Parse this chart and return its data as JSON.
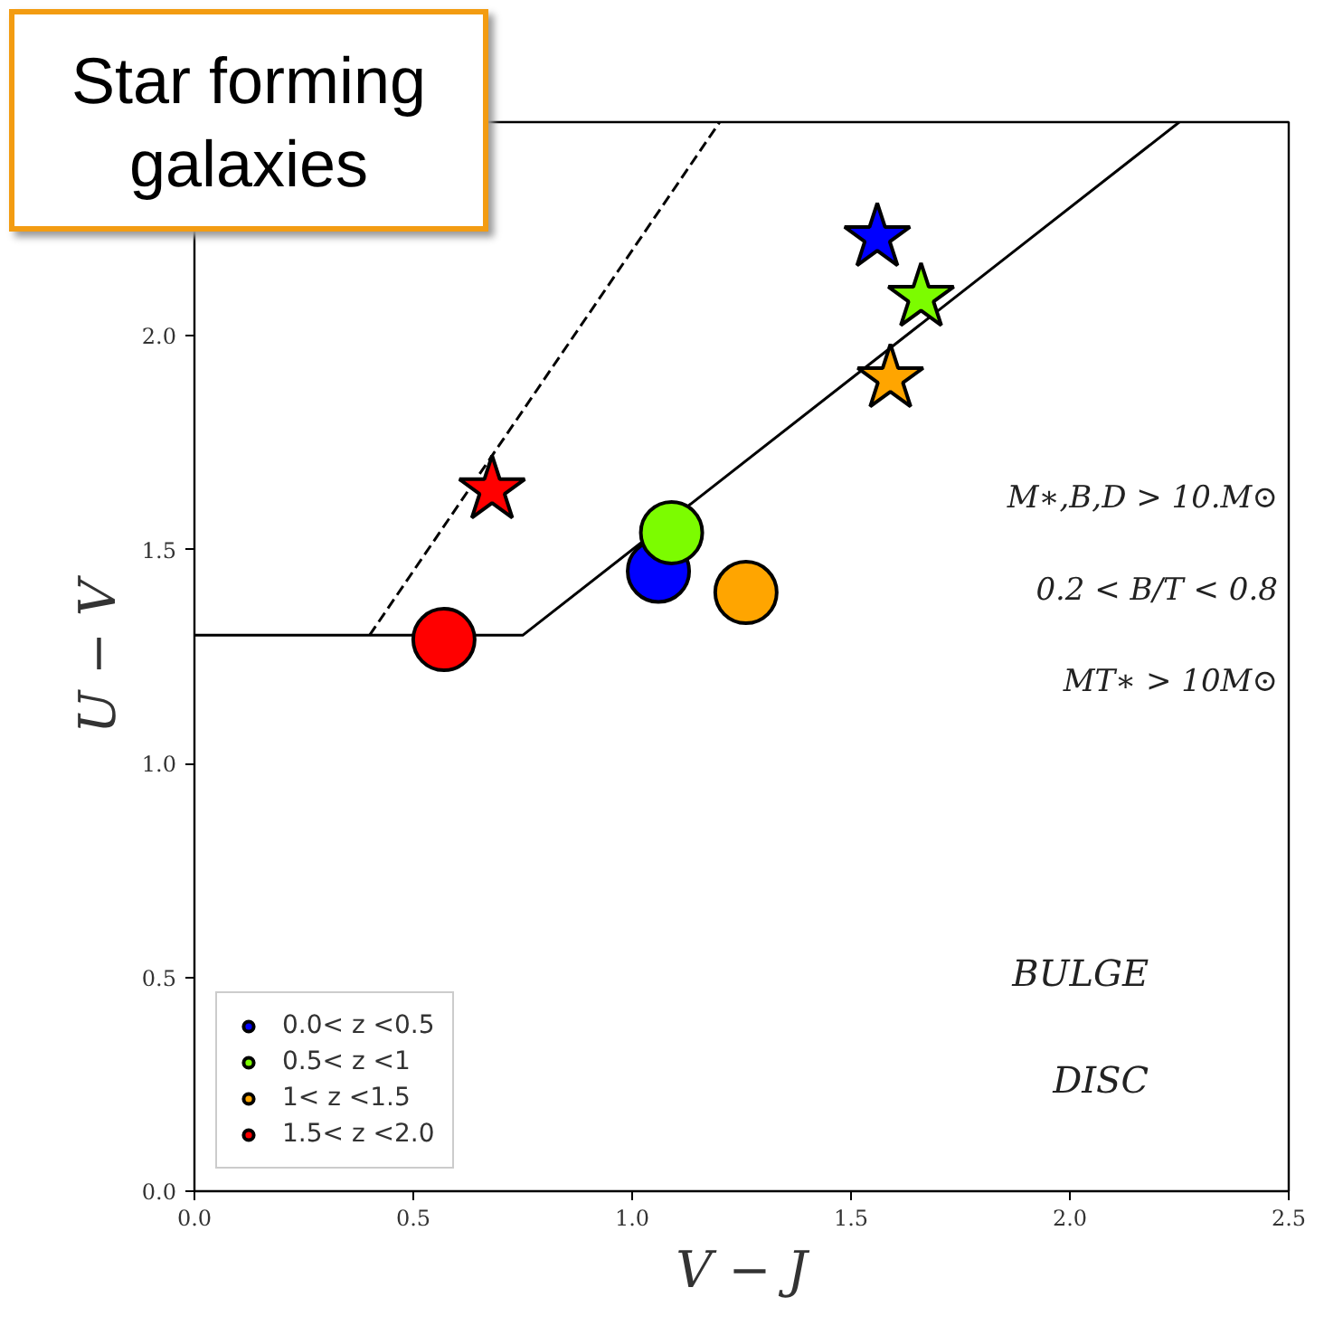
{
  "chart_data": {
    "type": "scatter",
    "title": "Star forming\ngalaxies",
    "xlabel": "V − J",
    "ylabel": "U − V",
    "xlim": [
      0,
      2.5
    ],
    "ylim": [
      0,
      2.5
    ],
    "xticks": [
      {
        "value": 0,
        "label": "0.0"
      },
      0.5,
      {
        "value": 1,
        "label": "1.0"
      },
      1.5,
      {
        "value": 2,
        "label": "2.0"
      },
      2.5
    ],
    "yticks": [
      {
        "value": 0,
        "label": "0.0"
      },
      0.5,
      {
        "value": 1,
        "label": "1.0"
      },
      1.5,
      {
        "value": 2,
        "label": "2.0"
      }
    ],
    "grid": false,
    "legend": "bottom left",
    "series": [
      {
        "type": "line",
        "color": "#000000",
        "line_style": "solid",
        "marker": "none",
        "x": [
          0,
          0.75,
          2.25
        ],
        "values": [
          1.3,
          1.3,
          2.5
        ]
      },
      {
        "type": "line",
        "color": "#000000",
        "line_style": "dashed",
        "marker": "none",
        "x": [
          0.4,
          1.2
        ],
        "values": [
          1.3,
          2.5
        ]
      },
      {
        "name": "0.0< z <0.5",
        "color": "#0000ff",
        "marker": "circle",
        "x": [
          1.06
        ],
        "values": [
          1.45
        ]
      },
      {
        "name": "0.5< z <1",
        "color": "#7cfc00",
        "marker": "circle",
        "x": [
          1.09
        ],
        "values": [
          1.54
        ]
      },
      {
        "name": "1< z <1.5",
        "color": "#ffa500",
        "marker": "circle",
        "x": [
          1.26
        ],
        "values": [
          1.4
        ]
      },
      {
        "name": "1.5< z <2.0",
        "color": "#ff0000",
        "marker": "circle",
        "x": [
          0.57
        ],
        "values": [
          1.29
        ]
      },
      {
        "color": "#0000ff",
        "marker": "star",
        "x": [
          1.56
        ],
        "values": [
          2.23
        ]
      },
      {
        "color": "#7cfc00",
        "marker": "star",
        "x": [
          1.66
        ],
        "values": [
          2.09
        ]
      },
      {
        "color": "#ffa500",
        "marker": "star",
        "x": [
          1.59
        ],
        "values": [
          1.9
        ]
      },
      {
        "color": "#ff0000",
        "marker": "star",
        "x": [
          0.68
        ],
        "values": [
          1.64
        ]
      }
    ],
    "annotations": [
      "M∗,B,D > 10.M⊙",
      "0.2 < B/T < 0.8",
      "MT∗ > 10M⊙",
      "BULGE",
      "DISC"
    ]
  }
}
